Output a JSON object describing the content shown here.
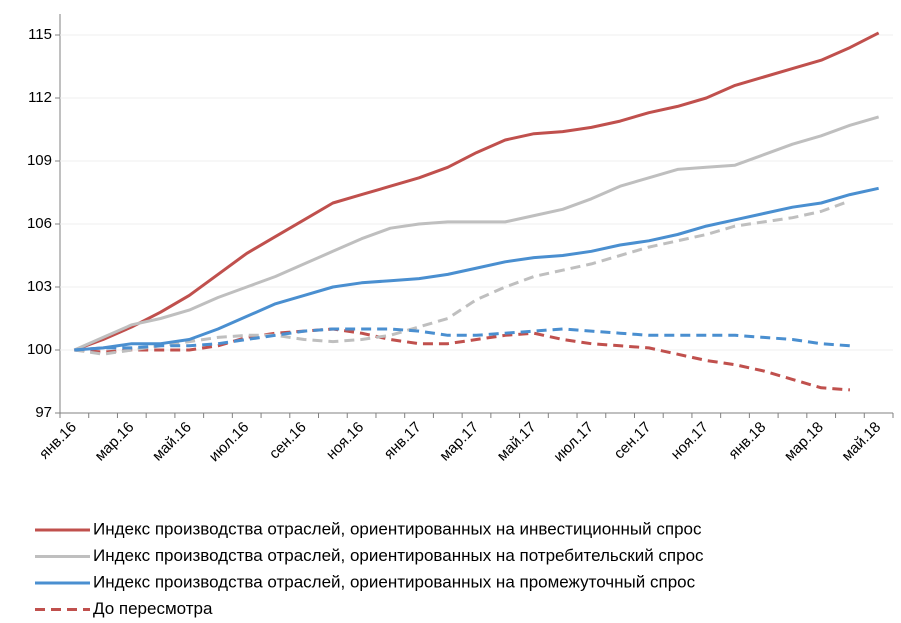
{
  "chart_data": {
    "type": "line",
    "categories": [
      "янв.16",
      null,
      "мар.16",
      null,
      "май.16",
      null,
      "июл.16",
      null,
      "сен.16",
      null,
      "ноя.16",
      null,
      "янв.17",
      null,
      "мар.17",
      null,
      "май.17",
      null,
      "июл.17",
      null,
      "сен.17",
      null,
      "ноя.17",
      null,
      "янв.18",
      null,
      "мар.18",
      null,
      "май.18"
    ],
    "series": [
      {
        "name": "Индекс производства отраслей, ориентированных на инвестиционный спрос",
        "color": "#c0504d",
        "values": [
          100,
          100.5,
          101.1,
          101.8,
          102.6,
          103.6,
          104.6,
          105.4,
          106.2,
          107.0,
          107.4,
          107.8,
          108.2,
          108.7,
          109.4,
          110.0,
          110.3,
          110.4,
          110.6,
          110.9,
          111.3,
          111.6,
          112.0,
          112.6,
          113.0,
          113.4,
          113.8,
          114.4,
          115.1
        ],
        "previous_values": [
          100,
          99.9,
          100.0,
          100.0,
          100.0,
          100.2,
          100.6,
          100.8,
          100.9,
          101.0,
          100.8,
          100.5,
          100.3,
          100.3,
          100.5,
          100.7,
          100.8,
          100.5,
          100.3,
          100.2,
          100.1,
          99.8,
          99.5,
          99.3,
          99.0,
          98.6,
          98.2,
          98.1,
          null
        ]
      },
      {
        "name": "Индекс производства отраслей, ориентированных на потребительский спрос",
        "color": "#bfbfbf",
        "values": [
          100,
          100.6,
          101.2,
          101.5,
          101.9,
          102.5,
          103.0,
          103.5,
          104.1,
          104.7,
          105.3,
          105.8,
          106.0,
          106.1,
          106.1,
          106.1,
          106.4,
          106.7,
          107.2,
          107.8,
          108.2,
          108.6,
          108.7,
          108.8,
          109.3,
          109.8,
          110.2,
          110.7,
          111.1
        ],
        "previous_values": [
          100,
          99.8,
          100.0,
          100.2,
          100.4,
          100.6,
          100.7,
          100.7,
          100.5,
          100.4,
          100.5,
          100.7,
          101.1,
          101.5,
          102.4,
          103.0,
          103.5,
          103.8,
          104.1,
          104.5,
          104.9,
          105.2,
          105.5,
          105.9,
          106.1,
          106.3,
          106.6,
          107.1,
          null
        ]
      },
      {
        "name": "Индекс производства отраслей, ориентированных на промежуточный спрос",
        "color": "#4a8fd0",
        "values": [
          100,
          100.1,
          100.3,
          100.3,
          100.5,
          101.0,
          101.6,
          102.2,
          102.6,
          103.0,
          103.2,
          103.3,
          103.4,
          103.6,
          103.9,
          104.2,
          104.4,
          104.5,
          104.7,
          105.0,
          105.2,
          105.5,
          105.9,
          106.2,
          106.5,
          106.8,
          107.0,
          107.4,
          107.7
        ],
        "previous_values": [
          100,
          100.1,
          100.1,
          100.2,
          100.2,
          100.3,
          100.5,
          100.7,
          100.9,
          101.0,
          101.0,
          101.0,
          100.9,
          100.7,
          100.7,
          100.8,
          100.9,
          101.0,
          100.9,
          100.8,
          100.7,
          100.7,
          100.7,
          100.7,
          100.6,
          100.5,
          100.3,
          100.2,
          null
        ]
      }
    ],
    "previous_label": "До пересмотра",
    "ylim": [
      97,
      115
    ],
    "yticks": [
      97,
      100,
      103,
      106,
      109,
      112,
      115
    ],
    "grid": true,
    "legend": "bottom"
  }
}
